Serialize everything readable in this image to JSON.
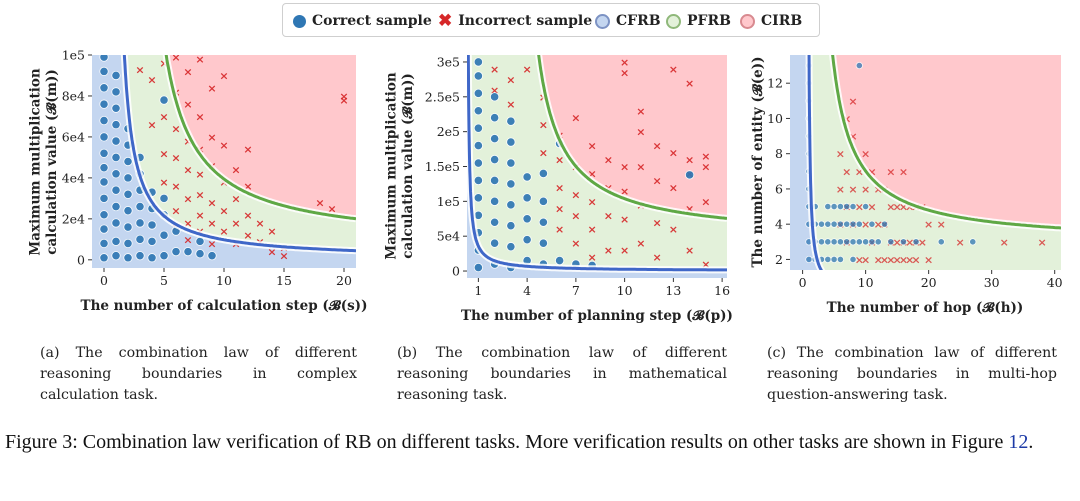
{
  "legend": {
    "correct": "Correct sample",
    "incorrect": "Incorrect sample",
    "cfrb": "CFRB",
    "pfrb": "PFRB",
    "cirb": "CIRB"
  },
  "colors": {
    "correct": "#2f77b4",
    "incorrect": "#d62728",
    "cfrb_fill": "#c4d6f0",
    "pfrb_fill": "#e3f1da",
    "cirb_fill": "#ffc8cc",
    "cfrb_line": "#3f67c8",
    "pfrb_line": "#5fa845"
  },
  "chart_data": [
    {
      "type": "scatter",
      "xlabel": "The number of calculation step (𝓑(s))",
      "ylabel": "Maximum multiplication calculation value (𝓑(m))",
      "x_ticks": [
        "0",
        "5",
        "10",
        "15",
        "20"
      ],
      "y_ticks": [
        "0",
        "2e4",
        "4e4",
        "6e4",
        "8e4",
        "1e5"
      ],
      "xlim": [
        -1,
        21
      ],
      "ylim": [
        -4000,
        100000
      ],
      "grid": false,
      "cfrb_boundary": {
        "k": 90000,
        "x0": 0.8
      },
      "pfrb_boundary": {
        "k": 240000,
        "x0": 2.6,
        "c": 7000
      },
      "correct": [
        [
          0,
          1000
        ],
        [
          0,
          8000
        ],
        [
          0,
          15000
        ],
        [
          0,
          22000
        ],
        [
          0,
          30000
        ],
        [
          0,
          38000
        ],
        [
          0,
          45000
        ],
        [
          0,
          52000
        ],
        [
          0,
          60000
        ],
        [
          0,
          68000
        ],
        [
          0,
          76000
        ],
        [
          0,
          84000
        ],
        [
          0,
          92000
        ],
        [
          0,
          99000
        ],
        [
          1,
          2000
        ],
        [
          1,
          9000
        ],
        [
          1,
          18000
        ],
        [
          1,
          26000
        ],
        [
          1,
          34000
        ],
        [
          1,
          42000
        ],
        [
          1,
          50000
        ],
        [
          1,
          58000
        ],
        [
          1,
          66000
        ],
        [
          1,
          74000
        ],
        [
          1,
          82000
        ],
        [
          1,
          90000
        ],
        [
          2,
          1000
        ],
        [
          2,
          8000
        ],
        [
          2,
          16000
        ],
        [
          2,
          24000
        ],
        [
          2,
          32000
        ],
        [
          2,
          40000
        ],
        [
          2,
          48000
        ],
        [
          2,
          56000
        ],
        [
          2,
          64000
        ],
        [
          3,
          2000
        ],
        [
          3,
          10000
        ],
        [
          3,
          18000
        ],
        [
          3,
          26000
        ],
        [
          3,
          34000
        ],
        [
          3,
          42000
        ],
        [
          3,
          50000
        ],
        [
          4,
          1000
        ],
        [
          4,
          9000
        ],
        [
          4,
          17000
        ],
        [
          4,
          25000
        ],
        [
          4,
          33000
        ],
        [
          5,
          2000
        ],
        [
          5,
          12000
        ],
        [
          5,
          22000
        ],
        [
          5,
          30000
        ],
        [
          5,
          78000
        ],
        [
          6,
          4000
        ],
        [
          6,
          14000
        ],
        [
          7,
          4000
        ],
        [
          8,
          3000
        ],
        [
          8,
          9000
        ],
        [
          9,
          2000
        ]
      ],
      "incorrect": [
        [
          3,
          93000
        ],
        [
          4,
          88000
        ],
        [
          4,
          66000
        ],
        [
          5,
          96000
        ],
        [
          5,
          70000
        ],
        [
          5,
          52000
        ],
        [
          5,
          38000
        ],
        [
          6,
          99000
        ],
        [
          6,
          82000
        ],
        [
          6,
          64000
        ],
        [
          6,
          50000
        ],
        [
          6,
          36000
        ],
        [
          6,
          24000
        ],
        [
          6,
          16000
        ],
        [
          7,
          92000
        ],
        [
          7,
          76000
        ],
        [
          7,
          58000
        ],
        [
          7,
          44000
        ],
        [
          7,
          30000
        ],
        [
          7,
          18000
        ],
        [
          7,
          10000
        ],
        [
          8,
          98000
        ],
        [
          8,
          70000
        ],
        [
          8,
          54000
        ],
        [
          8,
          42000
        ],
        [
          8,
          32000
        ],
        [
          8,
          22000
        ],
        [
          8,
          14000
        ],
        [
          9,
          84000
        ],
        [
          9,
          60000
        ],
        [
          9,
          46000
        ],
        [
          9,
          28000
        ],
        [
          9,
          18000
        ],
        [
          9,
          8000
        ],
        [
          10,
          90000
        ],
        [
          10,
          56000
        ],
        [
          10,
          38000
        ],
        [
          10,
          24000
        ],
        [
          10,
          14000
        ],
        [
          11,
          44000
        ],
        [
          11,
          30000
        ],
        [
          11,
          18000
        ],
        [
          11,
          8000
        ],
        [
          12,
          54000
        ],
        [
          12,
          36000
        ],
        [
          12,
          22000
        ],
        [
          12,
          12000
        ],
        [
          13,
          18000
        ],
        [
          13,
          9000
        ],
        [
          14,
          14000
        ],
        [
          14,
          4000
        ],
        [
          15,
          6000
        ],
        [
          15,
          2000
        ],
        [
          18,
          28000
        ],
        [
          19,
          25000
        ],
        [
          20,
          80000
        ],
        [
          20,
          78000
        ]
      ]
    },
    {
      "type": "scatter",
      "xlabel": "The number of planning step (𝓑(p))",
      "ylabel": "Maximum multiplication calculation value (𝓑(m))",
      "x_ticks": [
        "1",
        "4",
        "7",
        "10",
        "13",
        "16"
      ],
      "y_ticks": [
        "0",
        "5e4",
        "1e5",
        "1.5e5",
        "2e5",
        "2.5e5",
        "3e5"
      ],
      "xlim": [
        0.3,
        16.3
      ],
      "ylim": [
        -10000,
        310000
      ],
      "grid": false,
      "cfrb_boundary": {
        "k": 25000,
        "x0": 0.3
      },
      "pfrb_boundary": {
        "k": 400000,
        "x0": 3.2,
        "c": 45000
      },
      "correct": [
        [
          1,
          5000
        ],
        [
          1,
          30000
        ],
        [
          1,
          55000
        ],
        [
          1,
          80000
        ],
        [
          1,
          105000
        ],
        [
          1,
          130000
        ],
        [
          1,
          155000
        ],
        [
          1,
          180000
        ],
        [
          1,
          205000
        ],
        [
          1,
          230000
        ],
        [
          1,
          255000
        ],
        [
          1,
          280000
        ],
        [
          1,
          300000
        ],
        [
          2,
          10000
        ],
        [
          2,
          40000
        ],
        [
          2,
          70000
        ],
        [
          2,
          100000
        ],
        [
          2,
          130000
        ],
        [
          2,
          160000
        ],
        [
          2,
          190000
        ],
        [
          2,
          220000
        ],
        [
          2,
          250000
        ],
        [
          3,
          5000
        ],
        [
          3,
          35000
        ],
        [
          3,
          65000
        ],
        [
          3,
          95000
        ],
        [
          3,
          125000
        ],
        [
          3,
          155000
        ],
        [
          3,
          185000
        ],
        [
          3,
          215000
        ],
        [
          4,
          15000
        ],
        [
          4,
          45000
        ],
        [
          4,
          75000
        ],
        [
          4,
          105000
        ],
        [
          4,
          135000
        ],
        [
          5,
          10000
        ],
        [
          5,
          40000
        ],
        [
          5,
          70000
        ],
        [
          5,
          100000
        ],
        [
          5,
          140000
        ],
        [
          6,
          15000
        ],
        [
          6,
          183000
        ],
        [
          7,
          10000
        ],
        [
          8,
          8000
        ],
        [
          14,
          138000
        ]
      ],
      "incorrect": [
        [
          2,
          260000
        ],
        [
          2,
          290000
        ],
        [
          3,
          240000
        ],
        [
          3,
          275000
        ],
        [
          4,
          290000
        ],
        [
          5,
          250000
        ],
        [
          5,
          210000
        ],
        [
          5,
          170000
        ],
        [
          6,
          195000
        ],
        [
          6,
          160000
        ],
        [
          6,
          120000
        ],
        [
          6,
          90000
        ],
        [
          6,
          60000
        ],
        [
          7,
          220000
        ],
        [
          7,
          150000
        ],
        [
          7,
          110000
        ],
        [
          7,
          80000
        ],
        [
          7,
          40000
        ],
        [
          8,
          180000
        ],
        [
          8,
          140000
        ],
        [
          8,
          100000
        ],
        [
          8,
          60000
        ],
        [
          8,
          20000
        ],
        [
          9,
          160000
        ],
        [
          9,
          120000
        ],
        [
          9,
          80000
        ],
        [
          9,
          30000
        ],
        [
          10,
          300000
        ],
        [
          10,
          285000
        ],
        [
          10,
          150000
        ],
        [
          10,
          115000
        ],
        [
          10,
          75000
        ],
        [
          10,
          30000
        ],
        [
          11,
          230000
        ],
        [
          11,
          200000
        ],
        [
          11,
          150000
        ],
        [
          11,
          95000
        ],
        [
          11,
          40000
        ],
        [
          12,
          180000
        ],
        [
          12,
          130000
        ],
        [
          12,
          70000
        ],
        [
          12,
          20000
        ],
        [
          13,
          290000
        ],
        [
          13,
          170000
        ],
        [
          13,
          120000
        ],
        [
          13,
          60000
        ],
        [
          14,
          270000
        ],
        [
          14,
          160000
        ],
        [
          14,
          140000
        ],
        [
          14,
          90000
        ],
        [
          14,
          30000
        ],
        [
          15,
          165000
        ],
        [
          15,
          150000
        ],
        [
          15,
          100000
        ],
        [
          15,
          10000
        ]
      ]
    },
    {
      "type": "scatter",
      "xlabel": "The number of hop (𝓑(h))",
      "ylabel": "The number of entity (𝓑(e))",
      "x_ticks": [
        "0",
        "10",
        "20",
        "30",
        "40"
      ],
      "y_ticks": [
        "2",
        "4",
        "6",
        "8",
        "10",
        "12"
      ],
      "xlim": [
        -2,
        41
      ],
      "ylim": [
        1.4,
        13.6
      ],
      "grid": false,
      "cfrb_boundary": {
        "k": 3,
        "x0": 0.8
      },
      "pfrb_boundary": {
        "k": 35,
        "x0": 1.5,
        "c": 2.9
      },
      "correct": [
        [
          1,
          2
        ],
        [
          1,
          3
        ],
        [
          1,
          4
        ],
        [
          1,
          5
        ],
        [
          1,
          6
        ],
        [
          1,
          7
        ],
        [
          1,
          8
        ],
        [
          1,
          9
        ],
        [
          1,
          10
        ],
        [
          1,
          11
        ],
        [
          1,
          12
        ],
        [
          1,
          13
        ],
        [
          2,
          2
        ],
        [
          2,
          3
        ],
        [
          2,
          4
        ],
        [
          2,
          5
        ],
        [
          3,
          2
        ],
        [
          3,
          3
        ],
        [
          3,
          4
        ],
        [
          4,
          2
        ],
        [
          4,
          3
        ],
        [
          4,
          4
        ],
        [
          4,
          5
        ],
        [
          5,
          2
        ],
        [
          5,
          3
        ],
        [
          5,
          4
        ],
        [
          5,
          5
        ],
        [
          6,
          2
        ],
        [
          6,
          3
        ],
        [
          6,
          4
        ],
        [
          6,
          5
        ],
        [
          7,
          3
        ],
        [
          7,
          4
        ],
        [
          7,
          5
        ],
        [
          8,
          2
        ],
        [
          8,
          3
        ],
        [
          8,
          4
        ],
        [
          8,
          5
        ],
        [
          9,
          3
        ],
        [
          9,
          4
        ],
        [
          9,
          13
        ],
        [
          10,
          3
        ],
        [
          10,
          5
        ],
        [
          11,
          3
        ],
        [
          11,
          4
        ],
        [
          12,
          3
        ],
        [
          13,
          4
        ],
        [
          14,
          3
        ],
        [
          16,
          3
        ],
        [
          18,
          3
        ],
        [
          22,
          3
        ],
        [
          27,
          3
        ]
      ],
      "incorrect": [
        [
          6,
          8
        ],
        [
          6,
          6
        ],
        [
          6,
          4
        ],
        [
          7,
          10
        ],
        [
          7,
          7
        ],
        [
          7,
          5
        ],
        [
          7,
          3
        ],
        [
          8,
          11
        ],
        [
          8,
          9
        ],
        [
          8,
          6
        ],
        [
          8,
          4
        ],
        [
          9,
          7
        ],
        [
          9,
          5
        ],
        [
          9,
          2
        ],
        [
          10,
          8
        ],
        [
          10,
          6
        ],
        [
          10,
          4
        ],
        [
          10,
          2
        ],
        [
          11,
          7
        ],
        [
          11,
          5
        ],
        [
          11,
          3
        ],
        [
          12,
          6
        ],
        [
          12,
          4
        ],
        [
          12,
          2
        ],
        [
          13,
          6
        ],
        [
          13,
          4
        ],
        [
          13,
          2
        ],
        [
          14,
          7
        ],
        [
          14,
          5
        ],
        [
          14,
          3
        ],
        [
          14,
          2
        ],
        [
          15,
          5
        ],
        [
          15,
          3
        ],
        [
          15,
          2
        ],
        [
          16,
          7
        ],
        [
          16,
          5
        ],
        [
          16,
          3
        ],
        [
          16,
          2
        ],
        [
          17,
          5
        ],
        [
          17,
          3
        ],
        [
          17,
          2
        ],
        [
          18,
          5
        ],
        [
          18,
          3
        ],
        [
          18,
          2
        ],
        [
          19,
          5
        ],
        [
          19,
          3
        ],
        [
          20,
          4
        ],
        [
          20,
          2
        ],
        [
          22,
          4
        ],
        [
          25,
          3
        ],
        [
          32,
          3
        ],
        [
          38,
          3
        ]
      ]
    }
  ],
  "captions": [
    "(a) The combination law of different reasoning boundaries in complex calculation task.",
    "(b) The combination law of different reasoning boundaries in mathematical reasoning task.",
    "(c) The combination law of different reasoning boundaries in multi-hop question-answering task."
  ],
  "figure_caption": {
    "text": "Figure 3: Combination law verification of RB on different tasks. More verification results on other tasks are shown in Figure ",
    "ref": "12",
    "end": "."
  }
}
